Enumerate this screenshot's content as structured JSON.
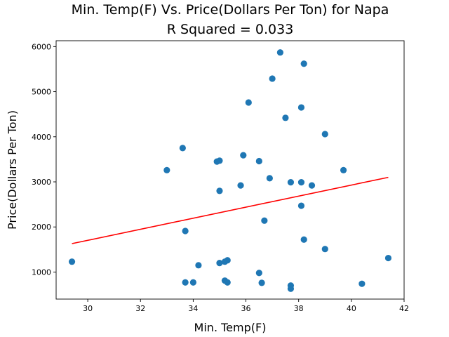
{
  "chart_data": {
    "type": "scatter",
    "title": "Min. Temp(F) Vs. Price(Dollars Per Ton) for Napa",
    "subtitle": "R Squared =  0.033",
    "xlabel": "Min. Temp(F)",
    "ylabel": "Price(Dollars Per Ton)",
    "xlim": [
      28.8,
      42.0
    ],
    "ylim": [
      400,
      6130
    ],
    "xticks": [
      30,
      32,
      34,
      36,
      38,
      40,
      42
    ],
    "yticks": [
      1000,
      2000,
      3000,
      4000,
      5000,
      6000
    ],
    "grid": false,
    "colors": {
      "points": "#1f77b4",
      "fit_line": "#ff0000"
    },
    "points": [
      {
        "x": 29.4,
        "y": 1230
      },
      {
        "x": 33.0,
        "y": 3260
      },
      {
        "x": 33.6,
        "y": 3750
      },
      {
        "x": 33.7,
        "y": 1910
      },
      {
        "x": 33.7,
        "y": 770
      },
      {
        "x": 34.0,
        "y": 770
      },
      {
        "x": 34.2,
        "y": 1150
      },
      {
        "x": 34.9,
        "y": 3450
      },
      {
        "x": 35.0,
        "y": 3470
      },
      {
        "x": 35.0,
        "y": 2800
      },
      {
        "x": 35.0,
        "y": 1200
      },
      {
        "x": 35.2,
        "y": 1230
      },
      {
        "x": 35.3,
        "y": 1260
      },
      {
        "x": 35.2,
        "y": 810
      },
      {
        "x": 35.3,
        "y": 770
      },
      {
        "x": 35.8,
        "y": 2920
      },
      {
        "x": 35.9,
        "y": 3590
      },
      {
        "x": 36.1,
        "y": 4760
      },
      {
        "x": 36.5,
        "y": 3460
      },
      {
        "x": 36.5,
        "y": 980
      },
      {
        "x": 36.6,
        "y": 760
      },
      {
        "x": 36.7,
        "y": 2140
      },
      {
        "x": 36.9,
        "y": 3080
      },
      {
        "x": 37.0,
        "y": 5290
      },
      {
        "x": 37.3,
        "y": 5870
      },
      {
        "x": 37.5,
        "y": 4420
      },
      {
        "x": 37.7,
        "y": 2990
      },
      {
        "x": 37.7,
        "y": 700
      },
      {
        "x": 37.7,
        "y": 630
      },
      {
        "x": 38.1,
        "y": 4650
      },
      {
        "x": 38.1,
        "y": 2990
      },
      {
        "x": 38.1,
        "y": 2470
      },
      {
        "x": 38.2,
        "y": 5620
      },
      {
        "x": 38.2,
        "y": 1720
      },
      {
        "x": 38.5,
        "y": 2920
      },
      {
        "x": 39.0,
        "y": 4060
      },
      {
        "x": 39.0,
        "y": 1510
      },
      {
        "x": 39.7,
        "y": 3260
      },
      {
        "x": 40.4,
        "y": 740
      },
      {
        "x": 41.4,
        "y": 1310
      }
    ],
    "fit_line": {
      "x": [
        29.4,
        41.4
      ],
      "y": [
        1630,
        3100
      ]
    }
  }
}
